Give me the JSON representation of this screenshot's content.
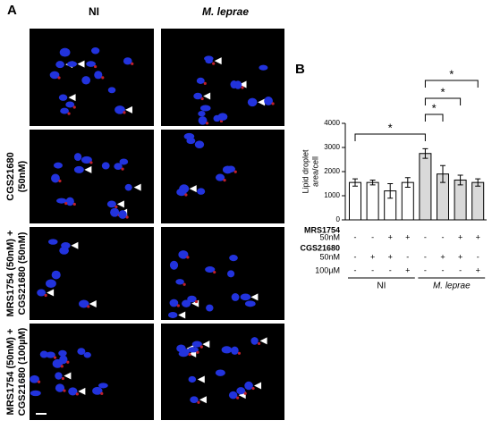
{
  "panel_a": {
    "label": "A",
    "column_labels": [
      "NI",
      "M. leprae"
    ],
    "row_labels": [
      [
        "CGS21680",
        "(50nM)"
      ],
      [
        "MRS1754 (50nM) +",
        "CGS21680 (50nM)"
      ],
      [
        "MRS1754 (50nM) +",
        "CGS21680 (100µM)"
      ]
    ]
  },
  "chart_data": {
    "type": "bar",
    "panel_label": "B",
    "y_label": [
      "Lipid droplet",
      "area/cell"
    ],
    "categories": [
      null,
      null,
      null,
      null,
      null,
      null,
      null,
      null
    ],
    "series": [
      {
        "name": "NI",
        "color": "#ffffff",
        "values": [
          1550,
          1550,
          1200,
          1550,
          null,
          null,
          null,
          null
        ],
        "errors": [
          150,
          100,
          300,
          200,
          null,
          null,
          null,
          null
        ]
      },
      {
        "name": "M. leprae",
        "color": "#d9d9d9",
        "values": [
          null,
          null,
          null,
          null,
          2750,
          1900,
          1650,
          1550
        ],
        "errors": [
          null,
          null,
          null,
          null,
          200,
          350,
          200,
          150
        ]
      }
    ],
    "ylim": [
      0,
      4000
    ],
    "yticks": [
      0,
      1000,
      2000,
      3000,
      4000
    ],
    "annotations": [
      "*",
      "*",
      "*",
      "*"
    ],
    "treatment_rows": [
      {
        "labels": [
          "MRS1754",
          "50nM"
        ],
        "signs": [
          "-",
          "-",
          "+",
          "+",
          "-",
          "-",
          "+",
          "+"
        ]
      },
      {
        "labels": [
          "CGS21680",
          "50nM"
        ],
        "signs": [
          "-",
          "+",
          "+",
          "-",
          "-",
          "+",
          "+",
          "-"
        ]
      },
      {
        "labels": [
          "100µM"
        ],
        "signs": [
          "-",
          "-",
          "-",
          "+",
          "-",
          "-",
          "-",
          "+"
        ]
      }
    ]
  }
}
